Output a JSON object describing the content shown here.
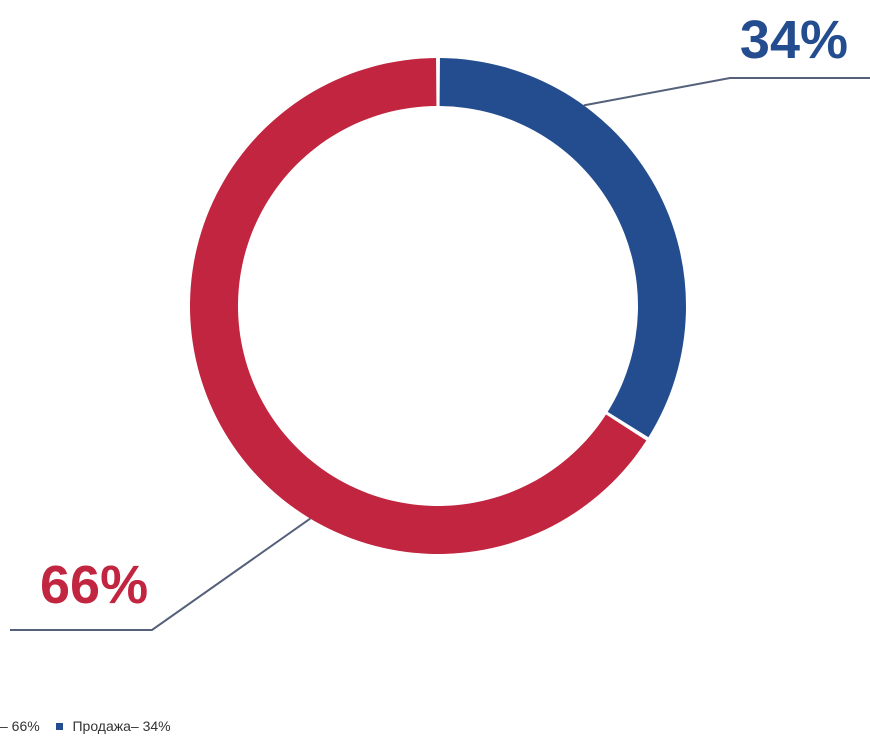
{
  "chart_data": {
    "type": "pie",
    "variant": "donut",
    "slices": [
      {
        "label": "Продажа",
        "value": 34,
        "display": "34%",
        "color": "#244d8f"
      },
      {
        "label": "",
        "value": 66,
        "display": "66%",
        "color": "#c1253f"
      }
    ],
    "legend": {
      "placement": "bottom-left",
      "entries": [
        {
          "text": "– 66%",
          "color": "#c1253f"
        },
        {
          "text": "Продажа– 34%",
          "color": "#244d8f"
        }
      ]
    }
  },
  "colors": {
    "leader_line": "#55607a",
    "separator": "#ffffff"
  }
}
